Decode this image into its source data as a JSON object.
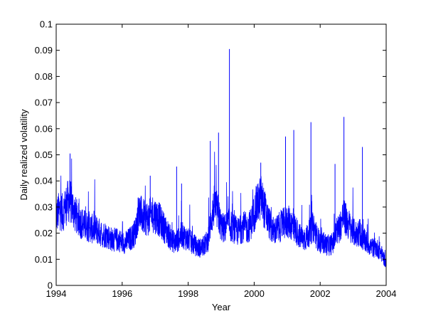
{
  "chart_data": {
    "type": "line",
    "title": "",
    "xlabel": "Year",
    "ylabel": "Daily realized volatility",
    "xlim": [
      1994,
      2004
    ],
    "ylim": [
      0,
      0.1
    ],
    "xticks": [
      1994,
      1996,
      1998,
      2000,
      2002,
      2004
    ],
    "xtick_labels": [
      "1994",
      "1996",
      "1998",
      "2000",
      "2002",
      "2004"
    ],
    "yticks": [
      0,
      0.01,
      0.02,
      0.03,
      0.04,
      0.05,
      0.06,
      0.07,
      0.08,
      0.09,
      0.1
    ],
    "ytick_labels": [
      "0",
      "0.01",
      "0.02",
      "0.03",
      "0.04",
      "0.05",
      "0.06",
      "0.07",
      "0.08",
      "0.09",
      "0.1"
    ],
    "grid": false,
    "legend": "none",
    "line_color": "#0000ff",
    "series": [
      {
        "x": [
          1994.0,
          1994.1,
          1994.2,
          1994.3,
          1994.4,
          1994.5,
          1994.6,
          1994.7,
          1994.8,
          1994.9,
          1995.0,
          1995.1,
          1995.2,
          1995.3,
          1995.4,
          1995.5,
          1995.6,
          1995.7,
          1995.8,
          1995.9,
          1996.0,
          1996.1,
          1996.2,
          1996.3,
          1996.4,
          1996.5,
          1996.6,
          1996.7,
          1996.8,
          1996.9,
          1997.0,
          1997.1,
          1997.2,
          1997.3,
          1997.4,
          1997.5,
          1997.6,
          1997.7,
          1997.8,
          1997.9,
          1998.0,
          1998.1,
          1998.2,
          1998.3,
          1998.4,
          1998.5,
          1998.6,
          1998.7,
          1998.8,
          1998.9,
          1999.0,
          1999.1,
          1999.2,
          1999.3,
          1999.4,
          1999.5,
          1999.6,
          1999.7,
          1999.8,
          1999.9,
          2000.0,
          2000.1,
          2000.2,
          2000.3,
          2000.4,
          2000.5,
          2000.6,
          2000.7,
          2000.8,
          2000.9,
          2001.0,
          2001.1,
          2001.2,
          2001.3,
          2001.4,
          2001.5,
          2001.6,
          2001.7,
          2001.8,
          2001.9,
          2002.0,
          2002.1,
          2002.2,
          2002.3,
          2002.4,
          2002.5,
          2002.6,
          2002.7,
          2002.8,
          2002.9,
          2003.0,
          2003.1,
          2003.2,
          2003.3,
          2003.4,
          2003.5,
          2003.6,
          2003.7,
          2003.8,
          2003.9,
          2004.0
        ],
        "y": [
          0.026,
          0.028,
          0.027,
          0.03,
          0.032,
          0.029,
          0.026,
          0.024,
          0.023,
          0.022,
          0.022,
          0.021,
          0.021,
          0.02,
          0.019,
          0.019,
          0.018,
          0.017,
          0.017,
          0.017,
          0.016,
          0.016,
          0.017,
          0.018,
          0.02,
          0.028,
          0.026,
          0.025,
          0.025,
          0.027,
          0.026,
          0.025,
          0.023,
          0.021,
          0.019,
          0.017,
          0.016,
          0.017,
          0.019,
          0.018,
          0.017,
          0.016,
          0.015,
          0.014,
          0.014,
          0.015,
          0.017,
          0.025,
          0.03,
          0.027,
          0.022,
          0.021,
          0.023,
          0.022,
          0.021,
          0.02,
          0.021,
          0.022,
          0.021,
          0.023,
          0.027,
          0.03,
          0.033,
          0.029,
          0.025,
          0.022,
          0.02,
          0.021,
          0.022,
          0.023,
          0.024,
          0.023,
          0.022,
          0.02,
          0.018,
          0.017,
          0.018,
          0.02,
          0.022,
          0.018,
          0.016,
          0.016,
          0.015,
          0.015,
          0.016,
          0.02,
          0.022,
          0.026,
          0.024,
          0.022,
          0.02,
          0.019,
          0.02,
          0.017,
          0.016,
          0.015,
          0.014,
          0.014,
          0.013,
          0.011,
          0.008
        ]
      }
    ],
    "spikes": [
      {
        "x": 1994.42,
        "y": 0.0505
      },
      {
        "x": 1996.85,
        "y": 0.042
      },
      {
        "x": 1997.65,
        "y": 0.0455
      },
      {
        "x": 1997.8,
        "y": 0.039
      },
      {
        "x": 1998.67,
        "y": 0.0553
      },
      {
        "x": 1998.92,
        "y": 0.0585
      },
      {
        "x": 1999.25,
        "y": 0.0905
      },
      {
        "x": 2000.2,
        "y": 0.047
      },
      {
        "x": 2000.95,
        "y": 0.057
      },
      {
        "x": 2001.2,
        "y": 0.0595
      },
      {
        "x": 2001.72,
        "y": 0.0625
      },
      {
        "x": 2002.45,
        "y": 0.0465
      },
      {
        "x": 2002.72,
        "y": 0.0645
      },
      {
        "x": 2003.28,
        "y": 0.053
      }
    ]
  }
}
